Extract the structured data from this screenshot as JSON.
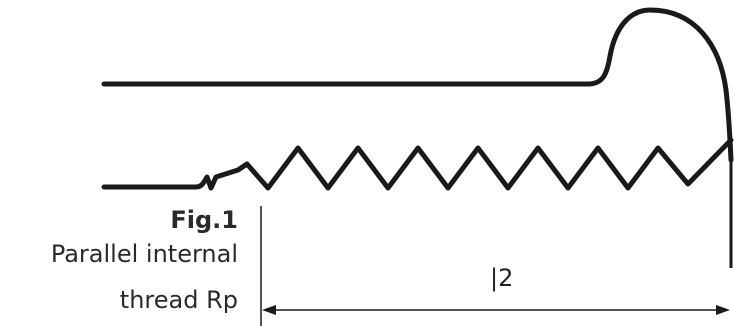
{
  "figure": {
    "label": "Fig.1",
    "caption_line1": "Parallel internal",
    "caption_line2": "thread Rp"
  },
  "dimension": {
    "label": "|2"
  },
  "style": {
    "line_color": "#1a1a1a",
    "text_color": "#2a2a2a"
  }
}
